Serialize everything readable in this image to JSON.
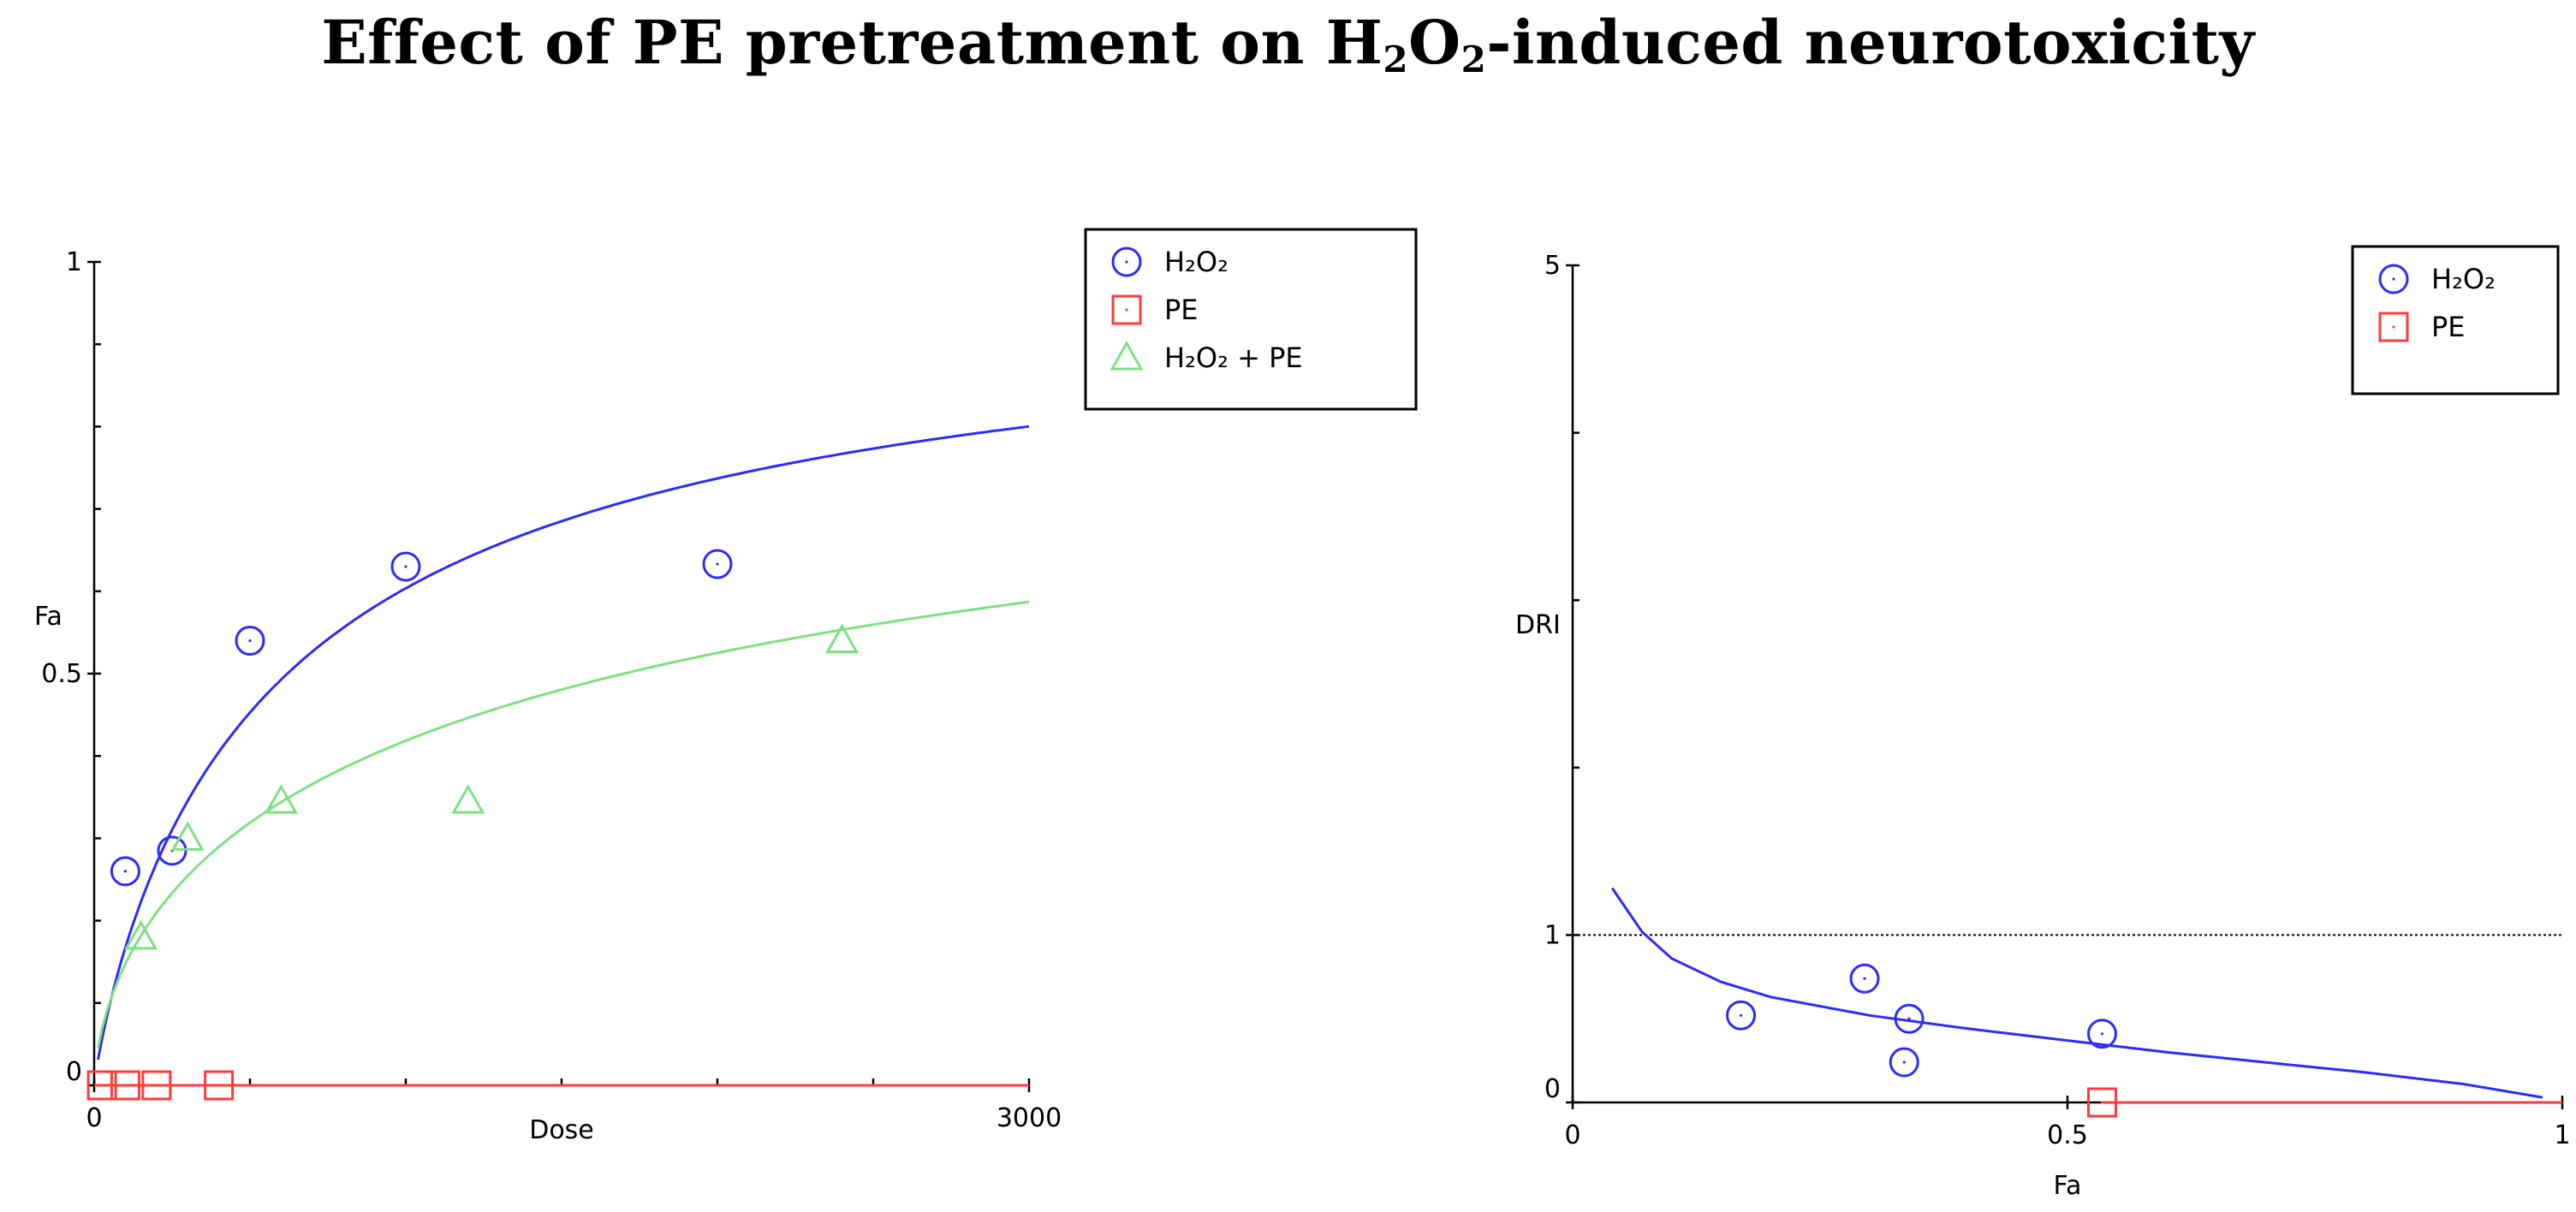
{
  "title": {
    "pre": "Effect of PE pretreatment on H",
    "sub1": "2",
    "mid": "O",
    "sub2": "2",
    "post": "-induced neurotoxicity"
  },
  "colors": {
    "h2o2": "#2b2bff",
    "pe": "#ff3b3b",
    "combo": "#7fe07f",
    "axis": "#000000"
  },
  "chart_data": [
    {
      "type": "scatter",
      "name": "dose-effect",
      "xlabel": "Dose",
      "ylabel": "Fa",
      "xlim": [
        0,
        3000
      ],
      "ylim": [
        0,
        1
      ],
      "x_tick_labels": [
        "0",
        "3000"
      ],
      "y_tick_labels": [
        "0",
        "0.5",
        "1"
      ],
      "x_minor_ticks": [
        500,
        1000,
        1500,
        2000,
        2500
      ],
      "y_minor_ticks": [
        0.1,
        0.2,
        0.3,
        0.4,
        0.6,
        0.7,
        0.8,
        0.9
      ],
      "legend_position": "top-right",
      "series": [
        {
          "key": "h2o2",
          "label": "H₂O₂",
          "marker": "circle",
          "color_key": "h2o2",
          "points": [
            [
              100,
              0.26
            ],
            [
              250,
              0.285
            ],
            [
              500,
              0.54
            ],
            [
              1000,
              0.63
            ],
            [
              2000,
              0.633
            ]
          ],
          "fit": {
            "dm": 620,
            "m": 0.88
          }
        },
        {
          "key": "pe",
          "label": "PE",
          "marker": "square",
          "color_key": "pe",
          "points": [
            [
              25,
              0
            ],
            [
              100,
              0
            ],
            [
              200,
              0
            ],
            [
              400,
              0
            ]
          ],
          "fit": {
            "constant": 0
          }
        },
        {
          "key": "combo",
          "label": "H₂O₂ + PE",
          "marker": "triangle",
          "color_key": "combo",
          "points": [
            [
              150,
              0.18
            ],
            [
              300,
              0.3
            ],
            [
              600,
              0.345
            ],
            [
              1200,
              0.345
            ],
            [
              2400,
              0.54
            ]
          ],
          "fit": {
            "dm": 1700,
            "m": 0.62
          }
        }
      ]
    },
    {
      "type": "scatter",
      "name": "dri-plot",
      "xlabel": "Fa",
      "ylabel": "DRI",
      "xlim": [
        0,
        1
      ],
      "ylim": [
        0,
        5
      ],
      "x_tick_labels": [
        "0",
        "0.5",
        "1"
      ],
      "y_tick_labels": [
        "0",
        "1",
        "5"
      ],
      "y_minor_ticks": [
        2,
        3,
        4
      ],
      "reference_line_y": 1,
      "legend_position": "top-right",
      "series": [
        {
          "key": "h2o2",
          "label": "H₂O₂",
          "marker": "circle",
          "color_key": "h2o2",
          "points": [
            [
              0.17,
              0.52
            ],
            [
              0.295,
              0.74
            ],
            [
              0.34,
              0.5
            ],
            [
              0.335,
              0.24
            ],
            [
              0.535,
              0.41
            ]
          ],
          "fit": {
            "points": [
              [
                0.04,
                1.28
              ],
              [
                0.07,
                1.02
              ],
              [
                0.1,
                0.86
              ],
              [
                0.15,
                0.72
              ],
              [
                0.2,
                0.63
              ],
              [
                0.3,
                0.52
              ],
              [
                0.4,
                0.44
              ],
              [
                0.5,
                0.37
              ],
              [
                0.6,
                0.3
              ],
              [
                0.7,
                0.24
              ],
              [
                0.8,
                0.18
              ],
              [
                0.9,
                0.11
              ],
              [
                0.98,
                0.03
              ]
            ]
          }
        },
        {
          "key": "pe",
          "label": "PE",
          "marker": "square",
          "color_key": "pe",
          "points": [
            [
              0.535,
              0
            ]
          ],
          "fit": {
            "points": [
              [
                0.535,
                0
              ],
              [
                1.0,
                0
              ]
            ]
          }
        }
      ]
    }
  ]
}
